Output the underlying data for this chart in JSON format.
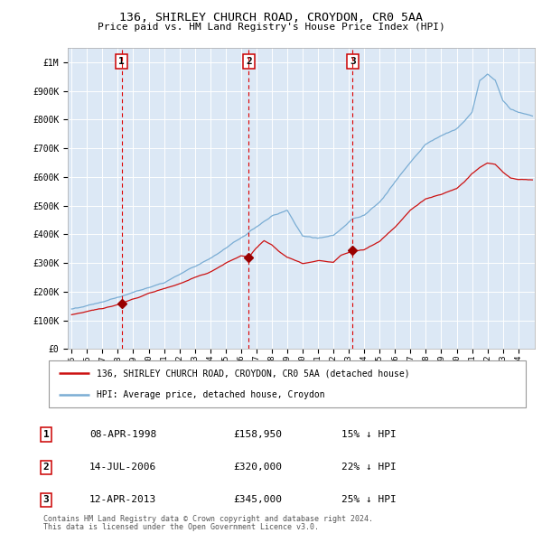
{
  "title1": "136, SHIRLEY CHURCH ROAD, CROYDON, CR0 5AA",
  "title2": "Price paid vs. HM Land Registry's House Price Index (HPI)",
  "background_color": "#dce8f5",
  "grid_color": "#ffffff",
  "hpi_color": "#7aadd4",
  "price_color": "#cc1111",
  "marker_color": "#990000",
  "vline_color": "#dd0000",
  "legend_line1": "136, SHIRLEY CHURCH ROAD, CROYDON, CR0 5AA (detached house)",
  "legend_line2": "HPI: Average price, detached house, Croydon",
  "table_rows": [
    [
      "1",
      "08-APR-1998",
      "£158,950",
      "15% ↓ HPI"
    ],
    [
      "2",
      "14-JUL-2006",
      "£320,000",
      "22% ↓ HPI"
    ],
    [
      "3",
      "12-APR-2013",
      "£345,000",
      "25% ↓ HPI"
    ]
  ],
  "footer1": "Contains HM Land Registry data © Crown copyright and database right 2024.",
  "footer2": "This data is licensed under the Open Government Licence v3.0.",
  "ylim": [
    0,
    1050000
  ],
  "yticks": [
    0,
    100000,
    200000,
    300000,
    400000,
    500000,
    600000,
    700000,
    800000,
    900000,
    1000000
  ],
  "ytick_labels": [
    "£0",
    "£100K",
    "£200K",
    "£300K",
    "£400K",
    "£500K",
    "£600K",
    "£700K",
    "£800K",
    "£900K",
    "£1M"
  ],
  "sale1_month": 39,
  "sale1_price": 158950,
  "sale2_month": 138,
  "sale2_price": 320000,
  "sale3_month": 219,
  "sale3_price": 345000,
  "start_year": 1995,
  "end_year": 2025
}
